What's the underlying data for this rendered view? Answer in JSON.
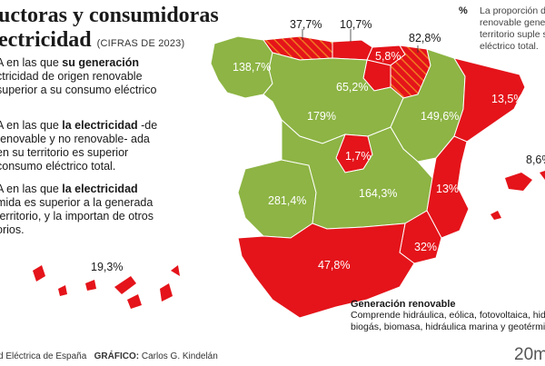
{
  "header": {
    "title_line1": "uctoras y consumidoras",
    "title_line2": "ectricidad",
    "year_note": "(CIFRAS DE 2023)"
  },
  "legend": {
    "pct_symbol": "%",
    "note": "La proporción d renovable gener territorio suple s eléctrico total."
  },
  "categories": [
    {
      "prefix": "A en las que ",
      "bold": "su generación",
      "rest": "ctricidad de origen renovable superior a su consumo eléctrico",
      "color": "#8db444"
    },
    {
      "prefix": "A en las que ",
      "bold": "la electricidad",
      "rest": " -de renovable y no renovable- ada en su territorio es superior consumo eléctrico total.",
      "color": "#8db444"
    },
    {
      "prefix": "A en las que ",
      "bold": "la electricidad",
      "rest": " mida es superior a la generada territorio, y la importan de otros orios.",
      "color": "#e4141a"
    }
  ],
  "regions": {
    "galicia": "138,7%",
    "asturias": "37,7%",
    "cantabria": "10,7%",
    "pais_vasco": "5,8%",
    "navarra": "82,8%",
    "castilla_leon": "65,2%",
    "castilla_leon_south": "179%",
    "aragon": "149,6%",
    "cataluna": "13,5%",
    "madrid": "1,7%",
    "castilla_la_mancha": "164,3%",
    "extremadura": "281,4%",
    "valencia": "13%",
    "murcia": "32%",
    "andalucia": "47,8%",
    "baleares": "8,6%",
    "canarias": "19,3%"
  },
  "colors": {
    "green": "#8db444",
    "red": "#e4141a",
    "hatch": "#f07820"
  },
  "generation": {
    "title": "Generación renovable",
    "description": "Comprende hidráulica, eólica, fotovoltaica, hidro biogás, biomasa, hidráulica marina y geotérmica"
  },
  "footer": {
    "source": "d Eléctrica de España",
    "graphic_label": "GRÁFICO:",
    "author": "Carlos G. Kindelán"
  },
  "brand": "20m"
}
